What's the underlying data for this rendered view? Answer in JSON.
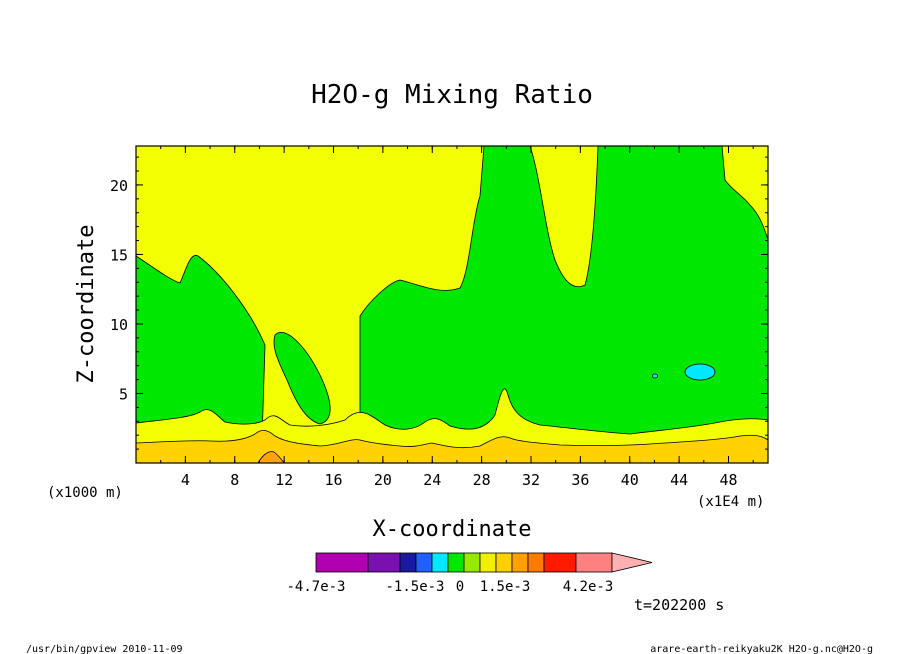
{
  "chart_data": {
    "type": "filled-contour",
    "title": "H2O-g Mixing Ratio",
    "xlabel": "X-coordinate",
    "ylabel": "Z-coordinate",
    "x_ticks": [
      4,
      8,
      12,
      16,
      20,
      24,
      28,
      32,
      36,
      40,
      44,
      48
    ],
    "y_ticks": [
      5,
      10,
      15,
      20
    ],
    "xlim": [
      0,
      51.2
    ],
    "ylim": [
      0,
      22.8
    ],
    "x_unit_label": "(x1E4 m)",
    "y_unit_label": "(x1000 m)",
    "time_label": "t=202200 s",
    "colorbar": {
      "labels": [
        "-4.7e-3",
        "-1.5e-3",
        "0",
        "1.5e-3",
        "4.2e-3"
      ],
      "colors": [
        "#b000b0",
        "#7a10b0",
        "#1a1aa0",
        "#2060ff",
        "#00e8ff",
        "#00e800",
        "#98e800",
        "#f0f000",
        "#ffd000",
        "#ffa000",
        "#ff7a00",
        "#ff1a00",
        "#ff8080",
        "#ffb0b0"
      ]
    },
    "fill_colors": {
      "yellow": "#f2ff00",
      "green": "#00e800",
      "cyan": "#00e8ff",
      "gold": "#ffd200",
      "orange": "#ffa400"
    }
  },
  "footer": {
    "left": "/usr/bin/gpview  2010-11-09",
    "right": "arare-earth-reikyaku2K_H2O-g.nc@H2O-g"
  }
}
